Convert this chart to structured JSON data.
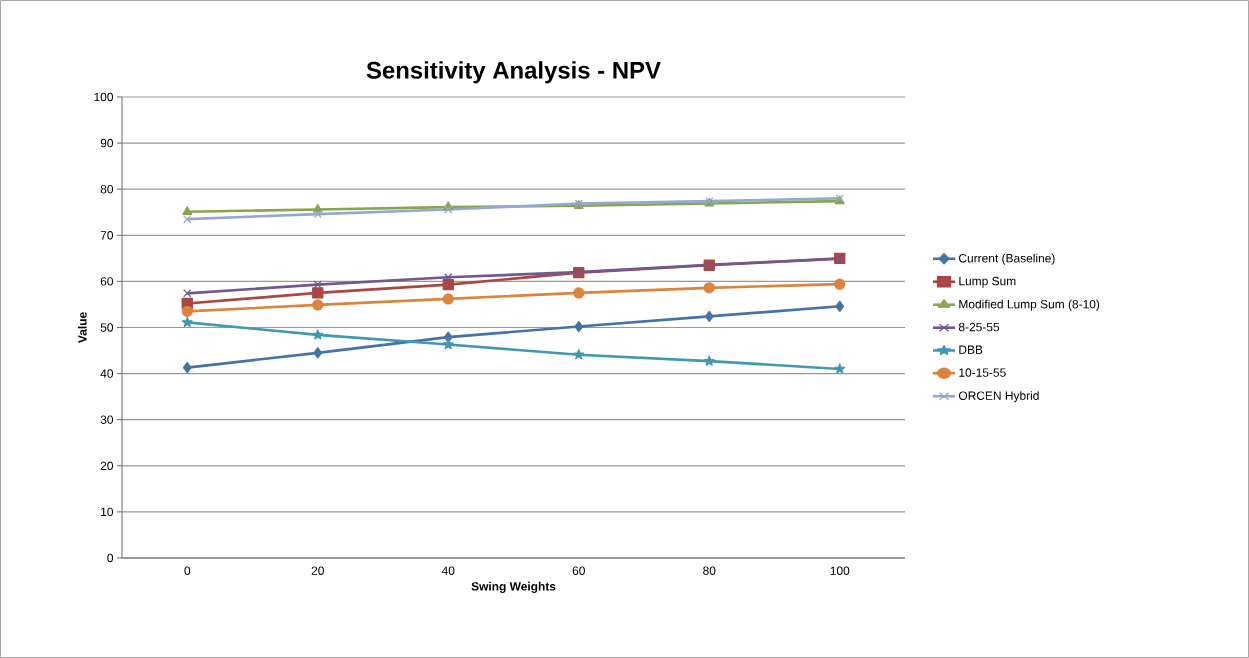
{
  "chart_data": {
    "type": "line",
    "title": "Sensitivity Analysis - NPV",
    "xlabel": "Swing Weights",
    "ylabel": "Value",
    "categories": [
      "0",
      "20",
      "40",
      "60",
      "80",
      "100"
    ],
    "series": [
      {
        "name": "Current (Baseline)",
        "color": "#4572a7",
        "marker": "diamond",
        "values": [
          41.3,
          44.5,
          47.9,
          50.2,
          52.4,
          54.6
        ]
      },
      {
        "name": "Lump Sum",
        "color": "#aa4643",
        "marker": "square",
        "values": [
          55.2,
          57.5,
          59.3,
          61.9,
          63.5,
          65.0
        ]
      },
      {
        "name": "Modified Lump Sum (8-10)",
        "color": "#89a54e",
        "marker": "triangle",
        "values": [
          75.1,
          75.6,
          76.1,
          76.4,
          76.9,
          77.4
        ]
      },
      {
        "name": "8-25-55",
        "color": "#71588f",
        "marker": "cross",
        "values": [
          57.4,
          59.3,
          60.9,
          62.0,
          63.6,
          64.9
        ]
      },
      {
        "name": "DBB",
        "color": "#4198af",
        "marker": "star",
        "values": [
          51.1,
          48.4,
          46.3,
          44.1,
          42.7,
          41.0
        ]
      },
      {
        "name": "10-15-55",
        "color": "#db843d",
        "marker": "circle",
        "values": [
          53.5,
          54.9,
          56.2,
          57.5,
          58.6,
          59.4
        ]
      },
      {
        "name": "ORCEN Hybrid",
        "color": "#93a9cf",
        "marker": "cross",
        "values": [
          73.5,
          74.6,
          75.6,
          76.9,
          77.4,
          78.0
        ]
      }
    ],
    "ylim": [
      0,
      100
    ],
    "yticks": [
      0,
      10,
      20,
      30,
      40,
      50,
      60,
      70,
      80,
      90,
      100
    ],
    "grid": "y",
    "legend": "right",
    "line_style": "solid"
  }
}
